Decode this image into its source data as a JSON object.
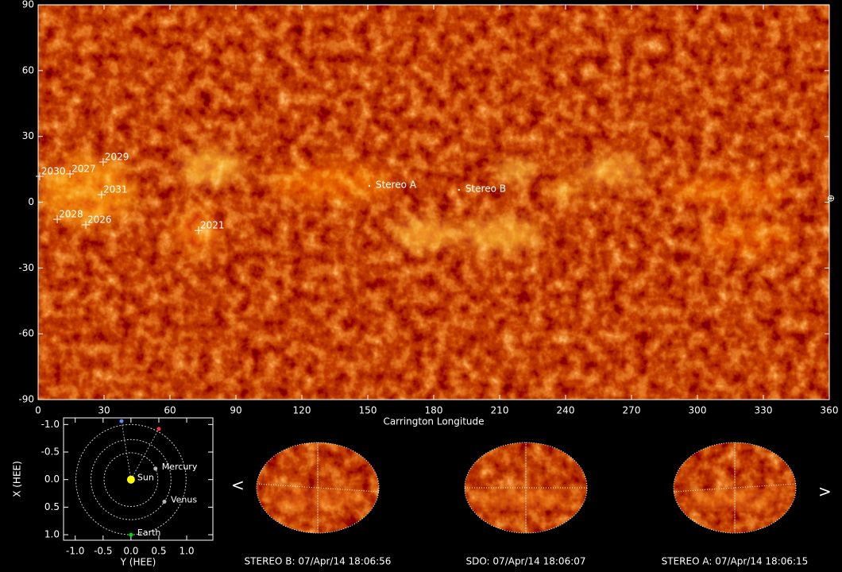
{
  "chart_data": [
    {
      "type": "map",
      "x_label": "Carrington Longitude",
      "xlim": [
        0,
        360
      ],
      "xticks": [
        0,
        30,
        60,
        90,
        120,
        150,
        180,
        210,
        240,
        270,
        300,
        330,
        360
      ],
      "ylim": [
        -90,
        90
      ],
      "yticks": [
        -90,
        -60,
        -30,
        0,
        30,
        60,
        90
      ],
      "annotations": [
        {
          "text": "2030",
          "x": 0.7,
          "y": 11.8,
          "marker": "plus"
        },
        {
          "text": "2027",
          "x": 14.5,
          "y": 12.9,
          "marker": "plus"
        },
        {
          "text": "2029",
          "x": 29.6,
          "y": 18.3,
          "marker": "plus"
        },
        {
          "text": "2031",
          "x": 28.9,
          "y": 3.4,
          "marker": "plus"
        },
        {
          "text": "2028",
          "x": 8.7,
          "y": -7.8,
          "marker": "plus"
        },
        {
          "text": "2026",
          "x": 21.7,
          "y": -10.3,
          "marker": "plus"
        },
        {
          "text": "2021",
          "x": 73,
          "y": -12.9,
          "marker": "plus"
        },
        {
          "text": "Stereo A",
          "x": 150.7,
          "y": 7.4,
          "marker": "dot"
        },
        {
          "text": "Stereo B",
          "x": 191.5,
          "y": 5.6,
          "marker": "dot"
        }
      ]
    },
    {
      "type": "scatter",
      "x_label": "Y (HEE)",
      "y_label": "X (HEE)",
      "xlim": [
        -1.21,
        1.47
      ],
      "xticks": [
        {
          "value": -1,
          "label": "-1.0"
        },
        {
          "value": -0.5,
          "label": "-0.5"
        },
        {
          "value": 0,
          "label": "0.0"
        },
        0.5,
        {
          "value": 1,
          "label": "1.0"
        }
      ],
      "ylim": [
        -1.12,
        1.1
      ],
      "yticks": [
        {
          "value": -1,
          "label": "-1.0"
        },
        {
          "value": -0.5,
          "label": "-0.5"
        },
        {
          "value": 0,
          "label": "0.0"
        },
        0.5,
        {
          "value": 1,
          "label": "1.0"
        }
      ],
      "series": [
        {
          "name": "Sun",
          "color": "#ffff00",
          "x": [
            0
          ],
          "y": [
            0
          ]
        },
        {
          "name": "Mercury",
          "color": "#bbbbbb",
          "x": [
            0.44
          ],
          "y": [
            -0.2
          ]
        },
        {
          "name": "Venus",
          "color": "#bbbbbb",
          "x": [
            0.6
          ],
          "y": [
            0.4
          ]
        },
        {
          "name": "Earth",
          "color": "#00dd00",
          "x": [
            0
          ],
          "y": [
            1.0
          ]
        },
        {
          "color": "#6688ff",
          "x": [
            -0.17
          ],
          "y": [
            -1.06
          ]
        },
        {
          "color": "#ff3030",
          "x": [
            0.5
          ],
          "y": [
            -0.92
          ]
        }
      ]
    }
  ],
  "disks": [
    {
      "caption": "STEREO B: 07/Apr/14 18:06:56"
    },
    {
      "caption": "SDO: 07/Apr/14 18:06:07"
    },
    {
      "caption": "STEREO A: 07/Apr/14 18:06:15"
    }
  ]
}
